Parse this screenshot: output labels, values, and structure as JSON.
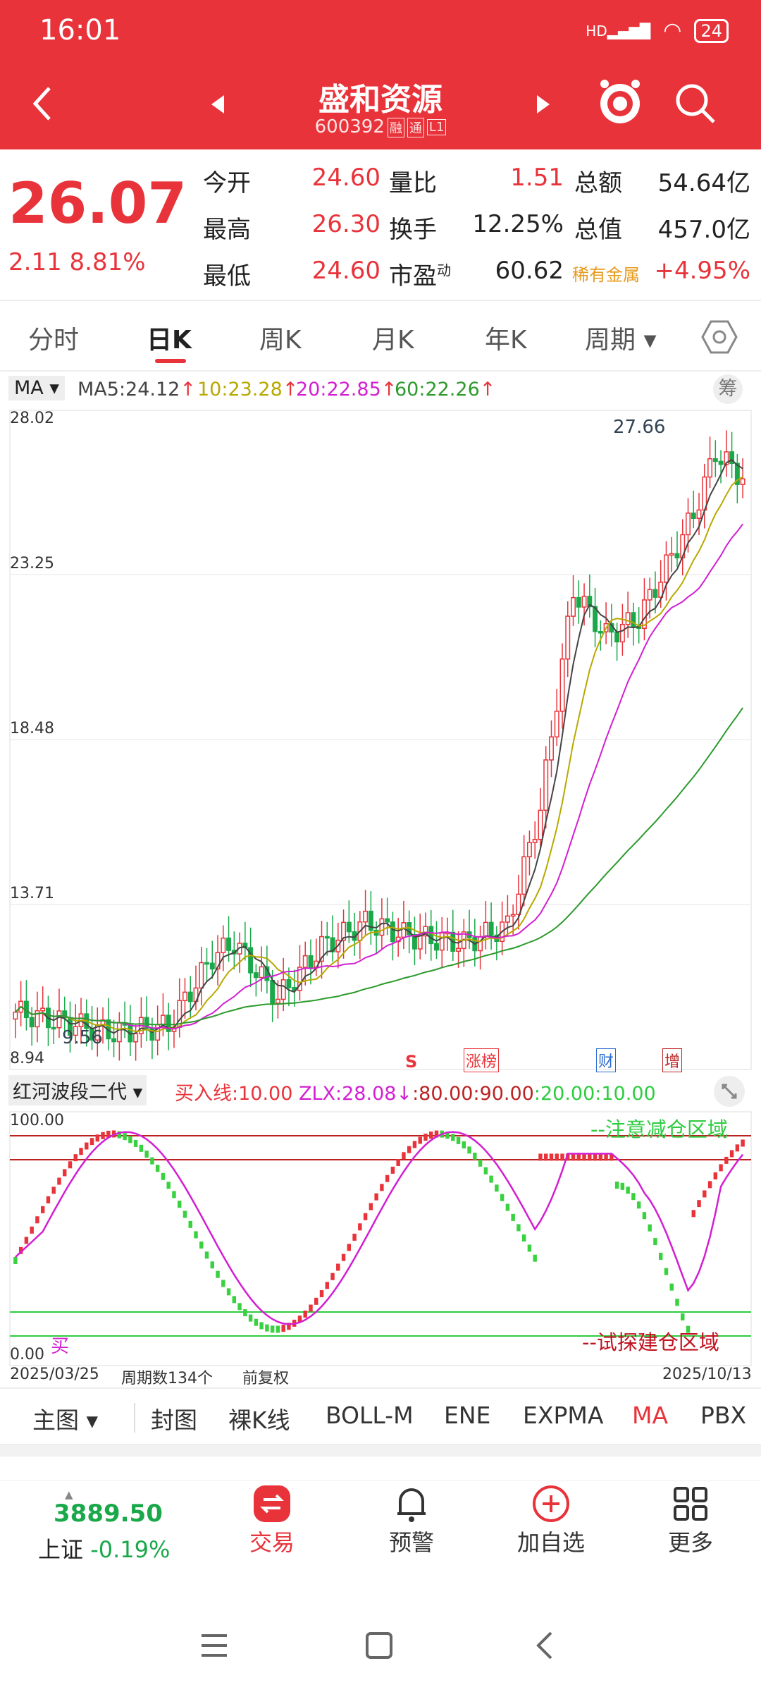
{
  "status": {
    "time": "16:01",
    "signal": "HD",
    "battery": "24"
  },
  "header": {
    "title": "盛和资源",
    "code": "600392",
    "tags": [
      "融",
      "通",
      "L1"
    ]
  },
  "quote": {
    "price": "26.07",
    "change": "2.11",
    "change_pct": "8.81%",
    "rows": [
      [
        {
          "l": "今开",
          "v": "24.60"
        },
        {
          "l": "量比",
          "v": "1.51"
        },
        {
          "l": "总额",
          "v": "54.64亿"
        }
      ],
      [
        {
          "l": "最高",
          "v": "26.30"
        },
        {
          "l": "换手",
          "v": "12.25%"
        },
        {
          "l": "总值",
          "v": "457.0亿"
        }
      ],
      [
        {
          "l": "最低",
          "v": "24.60"
        },
        {
          "l": "市盈",
          "v": "60.62",
          "sup": "动"
        },
        {
          "l": "稀有金属",
          "v": "+4.95%"
        }
      ]
    ]
  },
  "tabs": [
    "分时",
    "日K",
    "周K",
    "月K",
    "年K",
    "周期"
  ],
  "ma_legend": {
    "selector": "MA",
    "ma5": "MA5:24.12",
    "ma10": "10:23.28",
    "ma20": "20:22.85",
    "ma60": "60:22.26",
    "chip_button": "筹"
  },
  "chart": {
    "price_labels": [
      "28.02",
      "23.25",
      "18.48",
      "13.71",
      "8.94"
    ],
    "high_label": "27.66",
    "low_label": "9.56",
    "markers": [
      "S",
      "涨榜",
      "财",
      "增"
    ],
    "indicator_name": "红河波段二代",
    "indicator_legend": [
      "买入线:10.00",
      "ZLX:28.08↓",
      ":80.00",
      ":90.00",
      ":20.00",
      ":10.00"
    ],
    "sub_labels": [
      "100.00",
      "0.00"
    ],
    "zone_top": "--注意减仓区域",
    "zone_bottom": "--试探建仓区域",
    "buy_mark": "买",
    "date_start": "2025/03/25",
    "period_count": "周期数134个",
    "adjust": "前复权",
    "date_end": "2025/10/13"
  },
  "colors": {
    "red": "#e8333a",
    "green": "#1aa84a",
    "ma5": "#444444",
    "ma10": "#b8a800",
    "ma20": "#d21fd2",
    "ma60": "#2c9a2c"
  },
  "subtabs": [
    "主图",
    "封图",
    "裸K线",
    "BOLL-M",
    "ENE",
    "EXPMA",
    "MA",
    "PBX"
  ],
  "bottom_nav": {
    "index_value": "3889.50",
    "index_name": "上证",
    "index_change": "-0.19%",
    "items": [
      "交易",
      "预警",
      "加自选",
      "更多"
    ]
  },
  "chart_data": {
    "type": "candlestick",
    "y_range": [
      8.94,
      28.02
    ],
    "x_range": [
      "2025/03/25",
      "2025/10/13"
    ],
    "high": 27.66,
    "low": 9.56,
    "last_close": 26.07,
    "ma": {
      "MA5": 24.12,
      "MA10": 23.28,
      "MA20": 22.85,
      "MA60": 22.26
    }
  }
}
